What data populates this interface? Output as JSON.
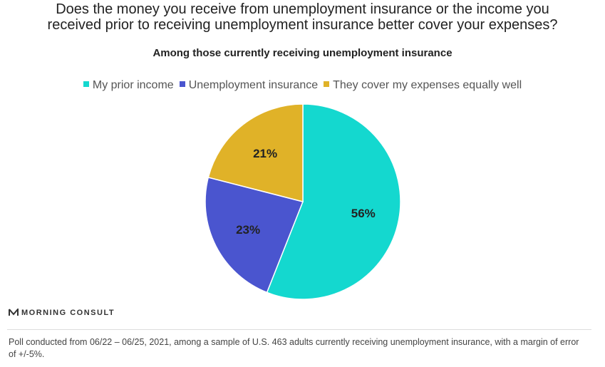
{
  "chart_data": {
    "type": "pie",
    "title": "Does the money you receive from unemployment insurance or the income you received prior to receiving unemployment insurance better cover your expenses?",
    "subtitle": "Among those currently receiving unemployment insurance",
    "categories": [
      "My prior income",
      "Unemployment insurance",
      "They cover my expenses equally well"
    ],
    "values": [
      56,
      23,
      21
    ],
    "value_labels": [
      "56%",
      "23%",
      "21%"
    ],
    "colors": [
      "#14d8cf",
      "#4a55cf",
      "#e0b228"
    ],
    "legend": "top"
  },
  "logo": "MORNING CONSULT",
  "source_note": "Poll conducted from 06/22 – 06/25, 2021, among a sample of U.S. 463 adults currently receiving unemployment insurance, with a margin of error of +/-5%."
}
